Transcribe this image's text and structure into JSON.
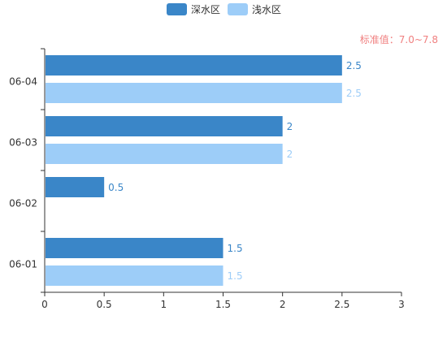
{
  "chart_data": {
    "type": "bar",
    "orientation": "horizontal",
    "categories": [
      "06-01",
      "06-02",
      "06-03",
      "06-04"
    ],
    "series": [
      {
        "name": "深水区",
        "values": [
          1.5,
          0.5,
          2,
          2.5
        ],
        "color": "#3a86c8"
      },
      {
        "name": "浅水区",
        "values": [
          1.5,
          null,
          2,
          2.5
        ],
        "color": "#9dcdf8"
      }
    ],
    "x_ticks": [
      0,
      0.5,
      1,
      1.5,
      2,
      2.5,
      3
    ],
    "xlim": [
      0,
      3
    ],
    "annotation": "标准值：7.0~7.8",
    "annotation_color": "#f08080",
    "legend_position": "top-center",
    "grid": false
  }
}
